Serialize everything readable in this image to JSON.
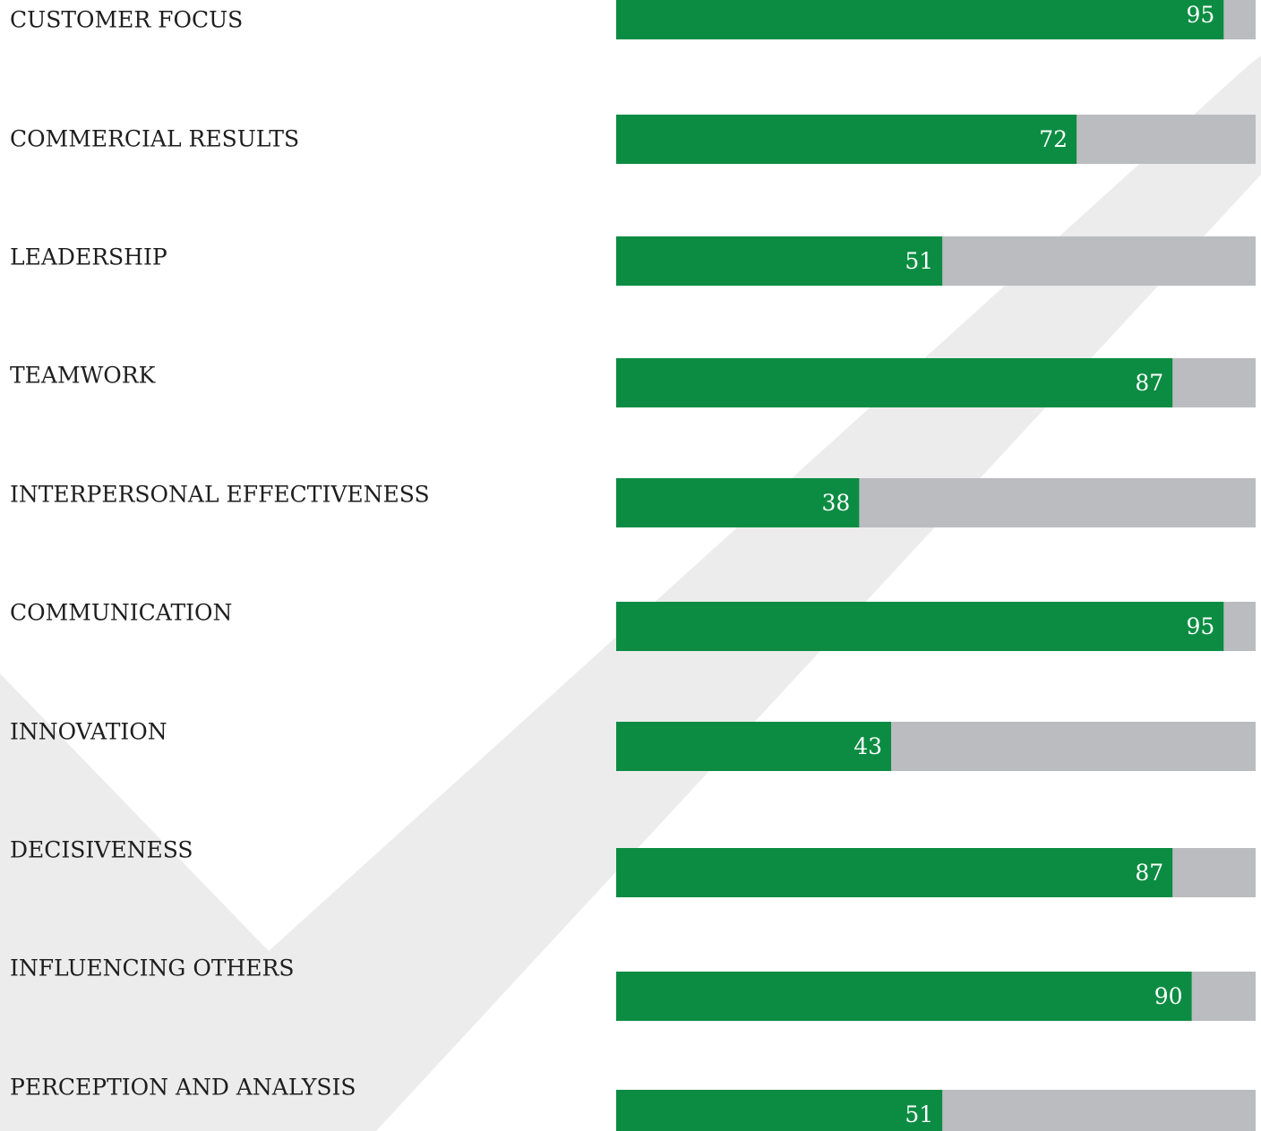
{
  "chart_data": {
    "type": "bar",
    "orientation": "horizontal",
    "categories": [
      "CUSTOMER FOCUS",
      "COMMERCIAL RESULTS",
      "LEADERSHIP",
      "TEAMWORK",
      "INTERPERSONAL EFFECTIVENESS",
      "COMMUNICATION",
      "INNOVATION",
      "DECISIVENESS",
      "INFLUENCING OTHERS",
      "PERCEPTION AND ANALYSIS"
    ],
    "values": [
      95,
      72,
      51,
      87,
      38,
      95,
      43,
      87,
      90,
      51
    ],
    "color": "#0b8c42",
    "track_color": "#bbbcbf",
    "xlim": [
      0,
      100
    ]
  }
}
